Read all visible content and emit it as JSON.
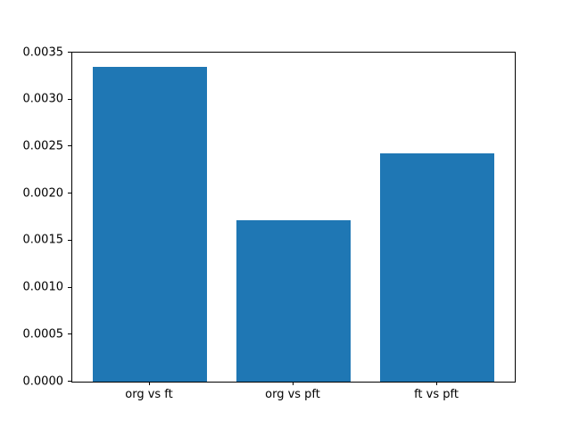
{
  "chart_data": {
    "type": "bar",
    "title": "",
    "xlabel": "",
    "ylabel": "",
    "categories": [
      "org vs ft",
      "org vs pft",
      "ft vs pft"
    ],
    "values": [
      0.00335,
      0.00172,
      0.00243
    ],
    "ylim": [
      0,
      0.0035
    ],
    "ytick_step": 0.0005,
    "ytick_decimals": 4,
    "bar_color": "#1f77b4",
    "bar_width_fraction": 0.8,
    "x_margin_fraction": 0.05,
    "grid": false,
    "legend_position": "none",
    "spine_color": "#000000",
    "text_color": "#000000",
    "background_color": "#ffffff"
  }
}
